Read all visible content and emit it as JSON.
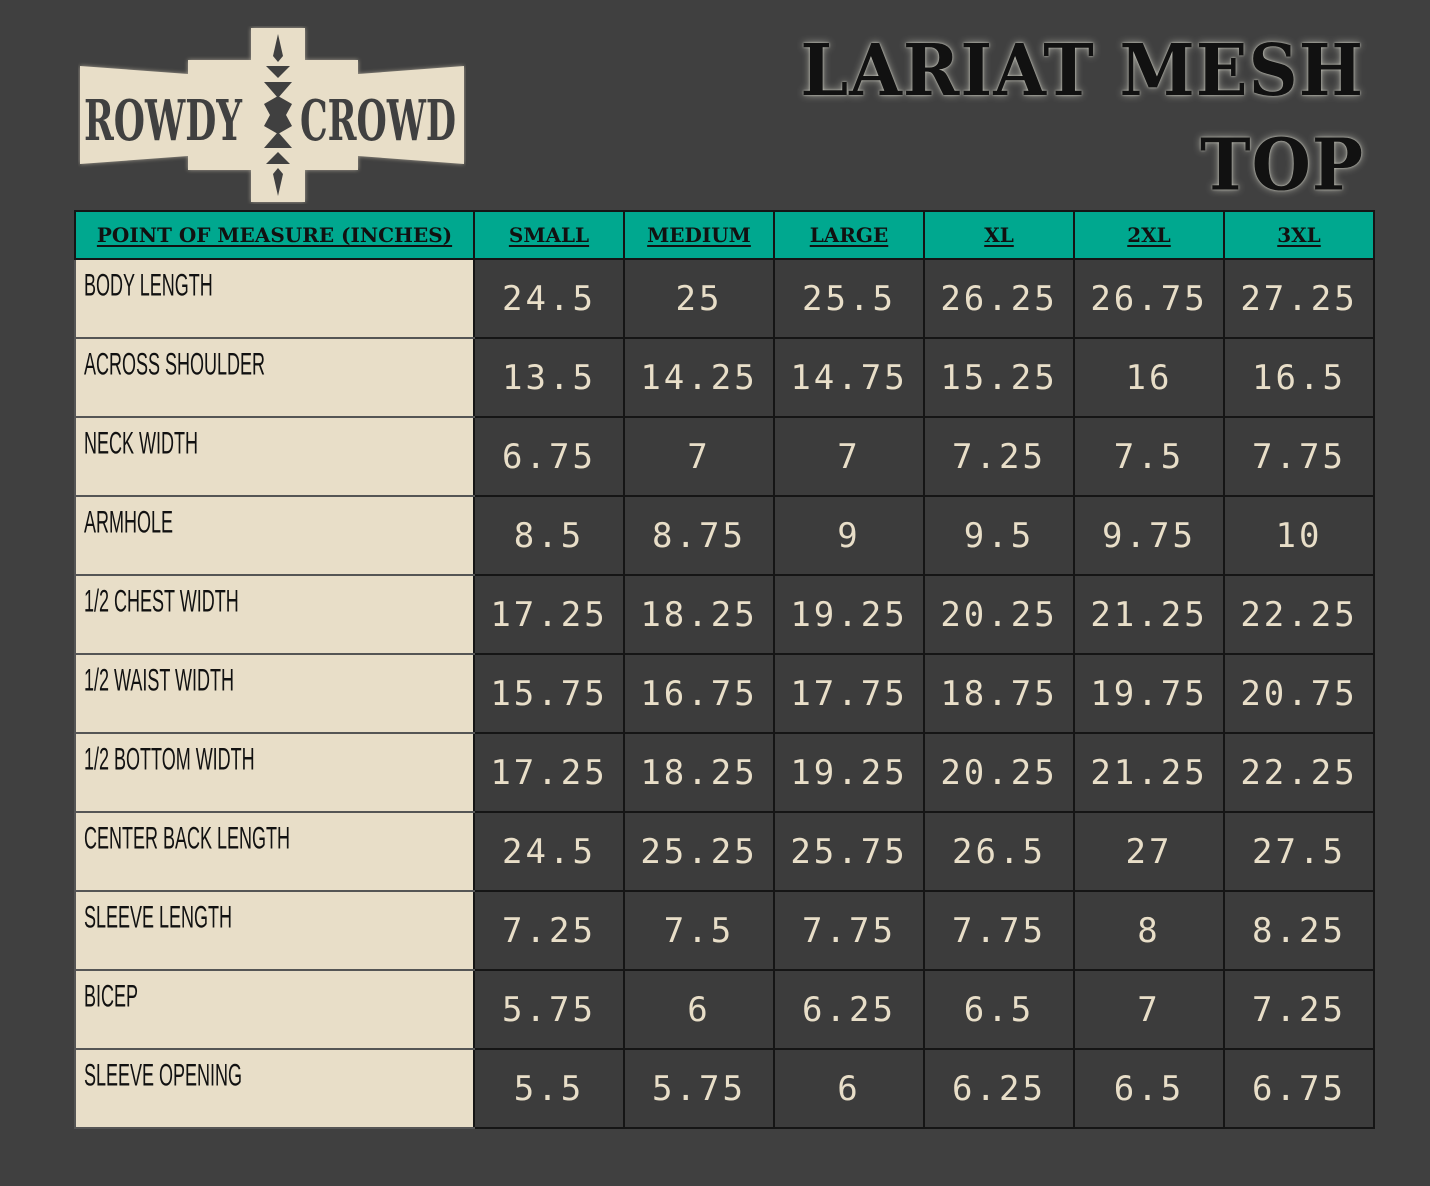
{
  "brand": {
    "logo_text_left": "ROWDY",
    "logo_text_right": "CROWD",
    "logo_icon": "aztec-arrow-icon",
    "colors": {
      "logo_bg": "#e8dec8",
      "logo_text": "#404040"
    }
  },
  "title": {
    "line1": "LARIAT MESH",
    "line2": "TOP"
  },
  "colors": {
    "background": "#404040",
    "header": "#00a88f",
    "label_bg": "#e8dec8",
    "value_text": "#e8dec8"
  },
  "table": {
    "headers": [
      "POINT OF MEASURE (INCHES)",
      "SMALL",
      "MEDIUM",
      "LARGE",
      "XL",
      "2XL",
      "3XL"
    ],
    "rows": [
      {
        "label": "BODY LENGTH",
        "values": [
          "24.5",
          "25",
          "25.5",
          "26.25",
          "26.75",
          "27.25"
        ]
      },
      {
        "label": "ACROSS SHOULDER",
        "values": [
          "13.5",
          "14.25",
          "14.75",
          "15.25",
          "16",
          "16.5"
        ]
      },
      {
        "label": "NECK WIDTH",
        "values": [
          "6.75",
          "7",
          "7",
          "7.25",
          "7.5",
          "7.75"
        ]
      },
      {
        "label": "ARMHOLE",
        "values": [
          "8.5",
          "8.75",
          "9",
          "9.5",
          "9.75",
          "10"
        ]
      },
      {
        "label": "1/2 CHEST WIDTH",
        "values": [
          "17.25",
          "18.25",
          "19.25",
          "20.25",
          "21.25",
          "22.25"
        ]
      },
      {
        "label": "1/2 WAIST WIDTH",
        "values": [
          "15.75",
          "16.75",
          "17.75",
          "18.75",
          "19.75",
          "20.75"
        ]
      },
      {
        "label": "1/2 BOTTOM WIDTH",
        "values": [
          "17.25",
          "18.25",
          "19.25",
          "20.25",
          "21.25",
          "22.25"
        ]
      },
      {
        "label": "CENTER BACK LENGTH",
        "values": [
          "24.5",
          "25.25",
          "25.75",
          "26.5",
          "27",
          "27.5"
        ]
      },
      {
        "label": "SLEEVE LENGTH",
        "values": [
          "7.25",
          "7.5",
          "7.75",
          "7.75",
          "8",
          "8.25"
        ]
      },
      {
        "label": "BICEP",
        "values": [
          "5.75",
          "6",
          "6.25",
          "6.5",
          "7",
          "7.25"
        ]
      },
      {
        "label": "SLEEVE OPENING",
        "values": [
          "5.5",
          "5.75",
          "6",
          "6.25",
          "6.5",
          "6.75"
        ]
      }
    ]
  }
}
